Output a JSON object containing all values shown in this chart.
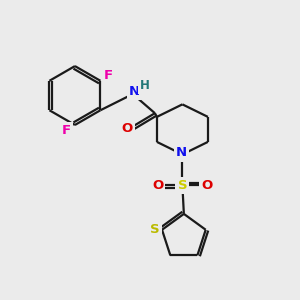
{
  "bg_color": "#ebebeb",
  "bond_color": "#1a1a1a",
  "atom_colors": {
    "F": "#ee00aa",
    "N": "#1010ee",
    "O": "#dd0000",
    "S_sulfonyl": "#cccc00",
    "S_thiophene": "#bbbb00",
    "H": "#227777",
    "C": "#1a1a1a"
  },
  "figsize": [
    3.0,
    3.0
  ],
  "dpi": 100
}
